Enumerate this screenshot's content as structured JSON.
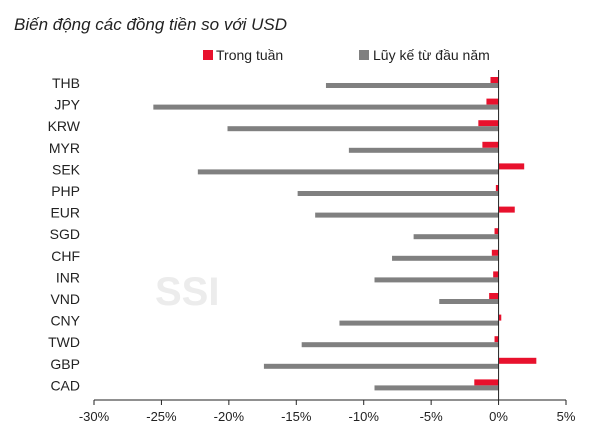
{
  "chart_data": {
    "type": "bar",
    "orientation": "horizontal",
    "title": "Biến động các đồng tiền so với USD",
    "watermark": "SSI",
    "categories": [
      "THB",
      "JPY",
      "KRW",
      "MYR",
      "SEK",
      "PHP",
      "EUR",
      "SGD",
      "CHF",
      "INR",
      "VND",
      "CNY",
      "TWD",
      "GBP",
      "CAD"
    ],
    "series": [
      {
        "name": "Trong tuần",
        "color": "#e8112d",
        "values": [
          -0.6,
          -0.9,
          -1.5,
          -1.2,
          1.9,
          -0.2,
          1.2,
          -0.3,
          -0.5,
          -0.4,
          -0.7,
          0.2,
          -0.3,
          2.8,
          -1.8
        ]
      },
      {
        "name": "Lũy kế từ đầu năm",
        "color": "#808080",
        "values": [
          -12.8,
          -25.6,
          -20.1,
          -11.1,
          -22.3,
          -14.9,
          -13.6,
          -6.3,
          -7.9,
          -9.2,
          -4.4,
          -11.8,
          -14.6,
          -17.4,
          -9.2
        ]
      }
    ],
    "xlim": [
      -30,
      5
    ],
    "xticks": [
      -30,
      -25,
      -20,
      -15,
      -10,
      -5,
      0,
      5
    ],
    "xtick_labels": [
      "-30%",
      "-25%",
      "-20%",
      "-15%",
      "-10%",
      "-5%",
      "0%",
      "5%"
    ],
    "legend": "top",
    "grid": false
  }
}
